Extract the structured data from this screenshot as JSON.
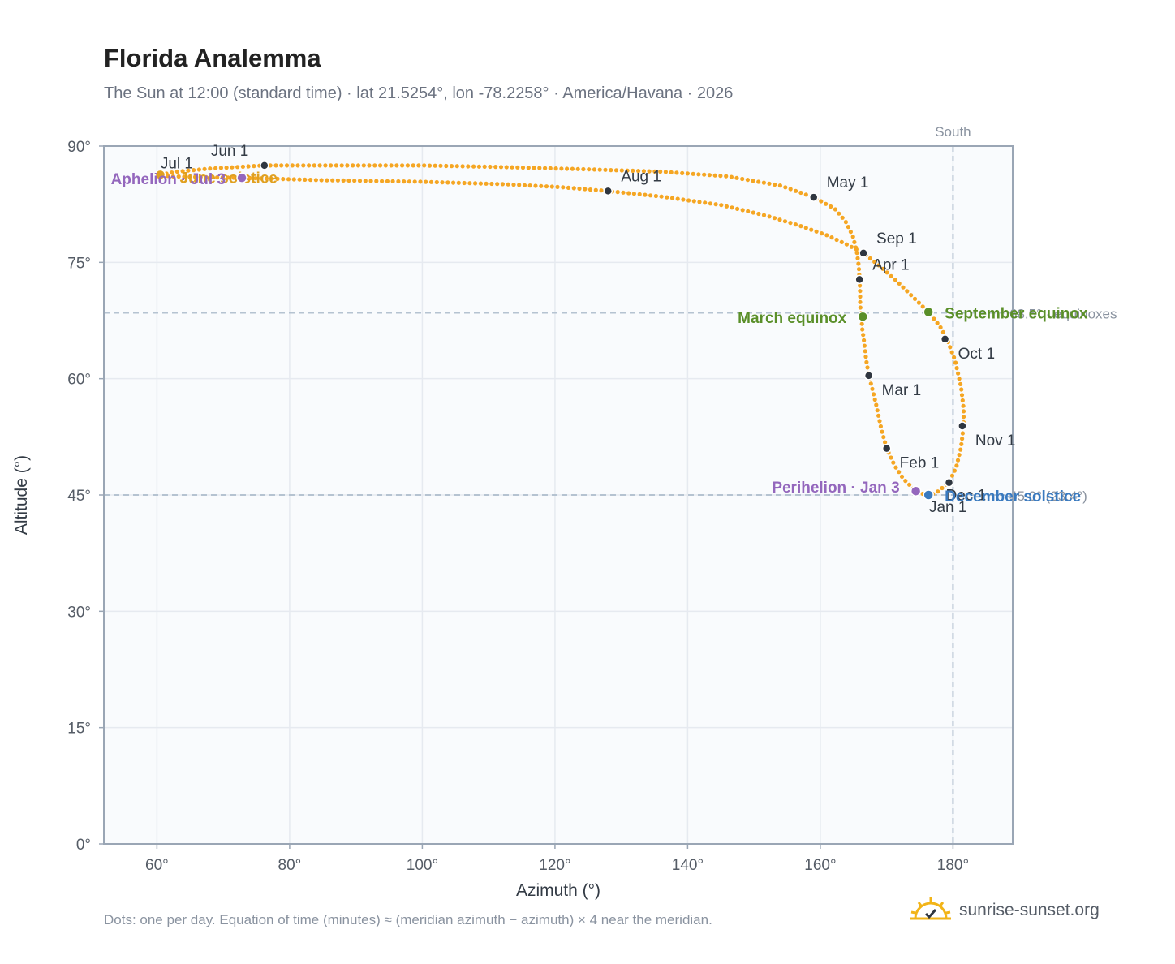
{
  "title": "Florida Analemma",
  "subtitle": "The Sun at 12:00 (standard time) · lat 21.5254°, lon -78.2258° · America/Havana · 2026",
  "footnote": "Dots: one per day. Equation of time (minutes) ≈ (meridian azimuth − azimuth) × 4 near the meridian.",
  "brand": {
    "name": "sunrise-sunset.org",
    "icon": "sun-logo-icon"
  },
  "colors": {
    "curve": "#f5a623",
    "month_marker": "#2f3640",
    "equinox": "#5a8f29",
    "solstice_summer": "#e0a020",
    "solstice_winter": "#3a7abf",
    "apsis": "#9467bd",
    "reference_line": "#b5c3d1",
    "plot_bg": "#f9fbfd",
    "grid": "#e6eaf0",
    "frame": "#9aa6b5"
  },
  "chart_data": {
    "type": "scatter",
    "title": "Florida Analemma",
    "xlabel": "Azimuth (°)",
    "ylabel": "Altitude (°)",
    "xlim": [
      52,
      189
    ],
    "ylim": [
      0,
      90
    ],
    "x_ticks": [
      60,
      80,
      100,
      120,
      140,
      160,
      180
    ],
    "y_ticks": [
      0,
      15,
      30,
      45,
      60,
      75,
      90
    ],
    "x_tick_labels": [
      "60°",
      "80°",
      "100°",
      "120°",
      "140°",
      "160°",
      "180°"
    ],
    "y_tick_labels": [
      "0°",
      "15°",
      "30°",
      "45°",
      "60°",
      "75°",
      "90°"
    ],
    "grid": true,
    "meridian": {
      "azimuth": 180,
      "label": "South"
    },
    "reference_lines": [
      {
        "altitude": 68.5,
        "label": "68.5° · equinoxes"
      },
      {
        "altitude": 45.0,
        "label": "45.0° (23.4°)"
      }
    ],
    "path": {
      "name": "Daily noon position",
      "points": [
        [
          176.2,
          44.9
        ],
        [
          174.4,
          45.5
        ],
        [
          172.5,
          47.1
        ],
        [
          171.2,
          48.8
        ],
        [
          170.0,
          51.0
        ],
        [
          169.2,
          53.5
        ],
        [
          168.4,
          56.7
        ],
        [
          167.8,
          58.8
        ],
        [
          167.3,
          60.4
        ],
        [
          166.9,
          62.5
        ],
        [
          166.6,
          64.7
        ],
        [
          166.3,
          66.6
        ],
        [
          166.2,
          68.0
        ],
        [
          166.0,
          69.5
        ],
        [
          166.0,
          71.2
        ],
        [
          165.9,
          72.8
        ],
        [
          165.8,
          74.5
        ],
        [
          165.5,
          76.4
        ],
        [
          164.9,
          78.4
        ],
        [
          163.8,
          80.3
        ],
        [
          162.2,
          81.9
        ],
        [
          159.0,
          83.4
        ],
        [
          154.0,
          84.9
        ],
        [
          146.0,
          86.1
        ],
        [
          136.0,
          86.7
        ],
        [
          125.0,
          87.0
        ],
        [
          112.0,
          87.3
        ],
        [
          100.0,
          87.5
        ],
        [
          88.0,
          87.5
        ],
        [
          76.2,
          87.5
        ],
        [
          68.0,
          87.1
        ],
        [
          63.0,
          86.7
        ],
        [
          60.3,
          86.3
        ],
        [
          62.0,
          86.1
        ],
        [
          67.0,
          86.0
        ],
        [
          72.8,
          85.9
        ],
        [
          85.0,
          85.6
        ],
        [
          100.0,
          85.4
        ],
        [
          112.0,
          85.1
        ],
        [
          121.0,
          84.7
        ],
        [
          128.0,
          84.2
        ],
        [
          136.0,
          83.5
        ],
        [
          145.0,
          82.4
        ],
        [
          152.0,
          81.0
        ],
        [
          157.0,
          79.7
        ],
        [
          161.0,
          78.5
        ],
        [
          164.0,
          77.3
        ],
        [
          166.5,
          76.2
        ],
        [
          169.0,
          74.5
        ],
        [
          171.5,
          72.6
        ],
        [
          174.0,
          70.5
        ],
        [
          176.3,
          68.6
        ],
        [
          178.0,
          66.8
        ],
        [
          179.1,
          65.1
        ],
        [
          180.3,
          62.4
        ],
        [
          181.2,
          59.0
        ],
        [
          181.6,
          56.1
        ],
        [
          181.6,
          53.9
        ],
        [
          181.2,
          51.1
        ],
        [
          180.5,
          48.6
        ],
        [
          179.4,
          46.6
        ],
        [
          177.5,
          45.3
        ],
        [
          176.2,
          44.9
        ]
      ]
    },
    "month_markers": [
      {
        "label": "Jan 1",
        "azimuth": 176.4,
        "altitude": 45.1
      },
      {
        "label": "Feb 1",
        "azimuth": 170.0,
        "altitude": 51.0
      },
      {
        "label": "Mar 1",
        "azimuth": 167.3,
        "altitude": 60.4
      },
      {
        "label": "Apr 1",
        "azimuth": 165.9,
        "altitude": 72.8
      },
      {
        "label": "May 1",
        "azimuth": 159.0,
        "altitude": 83.4
      },
      {
        "label": "Jun 1",
        "azimuth": 76.2,
        "altitude": 87.5
      },
      {
        "label": "Jul 1",
        "azimuth": 60.3,
        "altitude": 86.3
      },
      {
        "label": "Aug 1",
        "azimuth": 128.0,
        "altitude": 84.2
      },
      {
        "label": "Sep 1",
        "azimuth": 166.5,
        "altitude": 76.2
      },
      {
        "label": "Oct 1",
        "azimuth": 178.8,
        "altitude": 65.1
      },
      {
        "label": "Nov 1",
        "azimuth": 181.4,
        "altitude": 53.9
      },
      {
        "label": "Dec 1",
        "azimuth": 179.4,
        "altitude": 46.6
      }
    ],
    "events": [
      {
        "label": "March equinox",
        "azimuth": 166.4,
        "altitude": 68.0,
        "kind": "equinox"
      },
      {
        "label": "September equinox",
        "azimuth": 176.3,
        "altitude": 68.6,
        "kind": "equinox"
      },
      {
        "label": "June solstice",
        "azimuth": 60.5,
        "altitude": 86.3,
        "kind": "solstice_summer"
      },
      {
        "label": "December solstice",
        "azimuth": 176.3,
        "altitude": 45.0,
        "kind": "solstice_winter"
      },
      {
        "label": "Perihelion · Jan 3",
        "azimuth": 174.4,
        "altitude": 45.5,
        "kind": "apsis"
      },
      {
        "label": "Aphelion · Jul 3",
        "azimuth": 72.8,
        "altitude": 85.9,
        "kind": "apsis"
      }
    ]
  }
}
